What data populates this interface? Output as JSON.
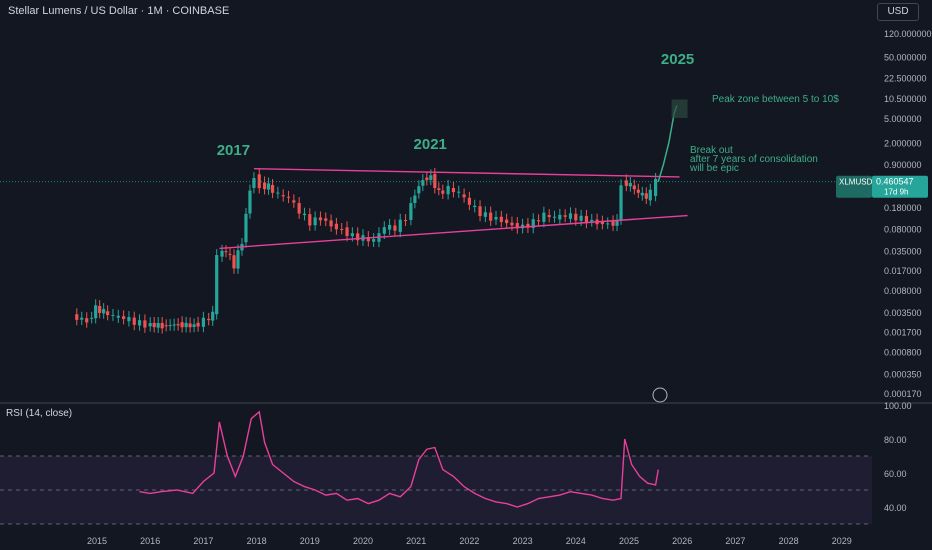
{
  "header": {
    "title": "Stellar Lumens / US Dollar · 1M · COINBASE",
    "currency_button": "USD"
  },
  "price_label": {
    "symbol": "XLMUSD",
    "value": "0.460547",
    "countdown": "17d 9h"
  },
  "rsi_label": "RSI (14, close)",
  "colors": {
    "up": "#26a69a",
    "down": "#ef5350",
    "trendline": "#e8409a",
    "rsi": "#e8409a",
    "annotation": "#3dae87",
    "background": "#131722"
  },
  "annotations": {
    "y2017": "2017",
    "y2021": "2021",
    "y2025": "2025",
    "peak_zone": "Peak zone between 5 to 10$",
    "breakout_1": "Break out",
    "breakout_2": "after 7 years of consolidation",
    "breakout_3": "will be epic"
  },
  "chart_data": {
    "type": "candlestick",
    "price_axis": {
      "scale": "log",
      "ticks": [
        {
          "label": "120.000000",
          "value": 120
        },
        {
          "label": "50.000000",
          "value": 50
        },
        {
          "label": "22.500000",
          "value": 22.5
        },
        {
          "label": "10.500000",
          "value": 10.5
        },
        {
          "label": "5.000000",
          "value": 5
        },
        {
          "label": "2.000000",
          "value": 2
        },
        {
          "label": "0.900000",
          "value": 0.9
        },
        {
          "label": "0.180000",
          "value": 0.18
        },
        {
          "label": "0.080000",
          "value": 0.08
        },
        {
          "label": "0.035000",
          "value": 0.035
        },
        {
          "label": "0.017000",
          "value": 0.017
        },
        {
          "label": "0.008000",
          "value": 0.008
        },
        {
          "label": "0.003500",
          "value": 0.0035
        },
        {
          "label": "0.001700",
          "value": 0.0017
        },
        {
          "label": "0.000800",
          "value": 0.0008
        },
        {
          "label": "0.000350",
          "value": 0.00035
        },
        {
          "label": "0.000170",
          "value": 0.00017
        }
      ]
    },
    "time_axis": [
      "2015",
      "2016",
      "2017",
      "2018",
      "2019",
      "2020",
      "2021",
      "2022",
      "2023",
      "2024",
      "2025",
      "2026",
      "2027",
      "2028",
      "2029"
    ],
    "rsi_axis": [
      "100.00",
      "80.00",
      "60.00",
      "40.00"
    ],
    "rsi_levels": [
      70,
      50,
      30
    ],
    "price_path": [
      [
        2014.62,
        0.003
      ],
      [
        2014.9,
        0.0025
      ],
      [
        2015.05,
        0.004
      ],
      [
        2015.2,
        0.0035
      ],
      [
        2015.4,
        0.003
      ],
      [
        2015.6,
        0.0028
      ],
      [
        2015.8,
        0.0024
      ],
      [
        2016.0,
        0.0022
      ],
      [
        2016.3,
        0.0021
      ],
      [
        2016.6,
        0.0022
      ],
      [
        2016.9,
        0.0021
      ],
      [
        2017.1,
        0.0025
      ],
      [
        2017.25,
        0.0032
      ],
      [
        2017.35,
        0.03
      ],
      [
        2017.5,
        0.035
      ],
      [
        2017.65,
        0.02
      ],
      [
        2017.8,
        0.05
      ],
      [
        2017.95,
        0.35
      ],
      [
        2018.05,
        0.55
      ],
      [
        2018.15,
        0.4
      ],
      [
        2018.3,
        0.38
      ],
      [
        2018.5,
        0.28
      ],
      [
        2018.7,
        0.25
      ],
      [
        2018.9,
        0.15
      ],
      [
        2019.1,
        0.1
      ],
      [
        2019.3,
        0.12
      ],
      [
        2019.5,
        0.09
      ],
      [
        2019.7,
        0.075
      ],
      [
        2019.9,
        0.06
      ],
      [
        2020.1,
        0.055
      ],
      [
        2020.3,
        0.05
      ],
      [
        2020.5,
        0.085
      ],
      [
        2020.7,
        0.08
      ],
      [
        2020.9,
        0.12
      ],
      [
        2021.05,
        0.3
      ],
      [
        2021.2,
        0.5
      ],
      [
        2021.35,
        0.55
      ],
      [
        2021.5,
        0.3
      ],
      [
        2021.7,
        0.35
      ],
      [
        2021.9,
        0.3
      ],
      [
        2022.1,
        0.2
      ],
      [
        2022.3,
        0.14
      ],
      [
        2022.5,
        0.12
      ],
      [
        2022.7,
        0.11
      ],
      [
        2022.9,
        0.09
      ],
      [
        2023.1,
        0.085
      ],
      [
        2023.3,
        0.1
      ],
      [
        2023.5,
        0.13
      ],
      [
        2023.7,
        0.12
      ],
      [
        2023.9,
        0.13
      ],
      [
        2024.1,
        0.12
      ],
      [
        2024.3,
        0.11
      ],
      [
        2024.5,
        0.1
      ],
      [
        2024.7,
        0.095
      ],
      [
        2024.85,
        0.1
      ],
      [
        2024.95,
        0.45
      ],
      [
        2025.1,
        0.4
      ],
      [
        2025.25,
        0.3
      ],
      [
        2025.4,
        0.26
      ],
      [
        2025.5,
        0.3
      ],
      [
        2025.55,
        0.46
      ]
    ],
    "rsi_path": [
      [
        2015.8,
        49
      ],
      [
        2016.0,
        48
      ],
      [
        2016.2,
        49
      ],
      [
        2016.5,
        50
      ],
      [
        2016.8,
        48
      ],
      [
        2017.0,
        55
      ],
      [
        2017.2,
        60
      ],
      [
        2017.3,
        90
      ],
      [
        2017.45,
        70
      ],
      [
        2017.6,
        58
      ],
      [
        2017.75,
        70
      ],
      [
        2017.9,
        92
      ],
      [
        2018.05,
        96
      ],
      [
        2018.15,
        78
      ],
      [
        2018.3,
        65
      ],
      [
        2018.5,
        60
      ],
      [
        2018.7,
        55
      ],
      [
        2018.9,
        52
      ],
      [
        2019.1,
        50
      ],
      [
        2019.3,
        47
      ],
      [
        2019.5,
        48
      ],
      [
        2019.7,
        44
      ],
      [
        2019.9,
        45
      ],
      [
        2020.1,
        42
      ],
      [
        2020.3,
        44
      ],
      [
        2020.5,
        48
      ],
      [
        2020.7,
        46
      ],
      [
        2020.9,
        52
      ],
      [
        2021.05,
        68
      ],
      [
        2021.2,
        74
      ],
      [
        2021.35,
        75
      ],
      [
        2021.5,
        62
      ],
      [
        2021.7,
        58
      ],
      [
        2021.9,
        52
      ],
      [
        2022.1,
        48
      ],
      [
        2022.3,
        45
      ],
      [
        2022.5,
        43
      ],
      [
        2022.7,
        42
      ],
      [
        2022.9,
        40
      ],
      [
        2023.1,
        42
      ],
      [
        2023.3,
        45
      ],
      [
        2023.5,
        46
      ],
      [
        2023.7,
        47
      ],
      [
        2023.9,
        49
      ],
      [
        2024.1,
        48
      ],
      [
        2024.3,
        47
      ],
      [
        2024.5,
        45
      ],
      [
        2024.7,
        44
      ],
      [
        2024.85,
        45
      ],
      [
        2024.92,
        80
      ],
      [
        2025.05,
        65
      ],
      [
        2025.2,
        58
      ],
      [
        2025.35,
        54
      ],
      [
        2025.5,
        53
      ],
      [
        2025.55,
        62
      ]
    ],
    "trendlines": [
      {
        "from": [
          2017.95,
          0.75
        ],
        "to": [
          2025.95,
          0.55
        ]
      },
      {
        "from": [
          2017.3,
          0.038
        ],
        "to": [
          2026.1,
          0.13
        ]
      }
    ],
    "projection_path": [
      [
        2025.55,
        0.46
      ],
      [
        2025.65,
        0.9
      ],
      [
        2025.75,
        2.0
      ],
      [
        2025.85,
        6.0
      ],
      [
        2025.9,
        8.0
      ]
    ],
    "peak_zone": {
      "from": 5,
      "to": 10
    }
  }
}
